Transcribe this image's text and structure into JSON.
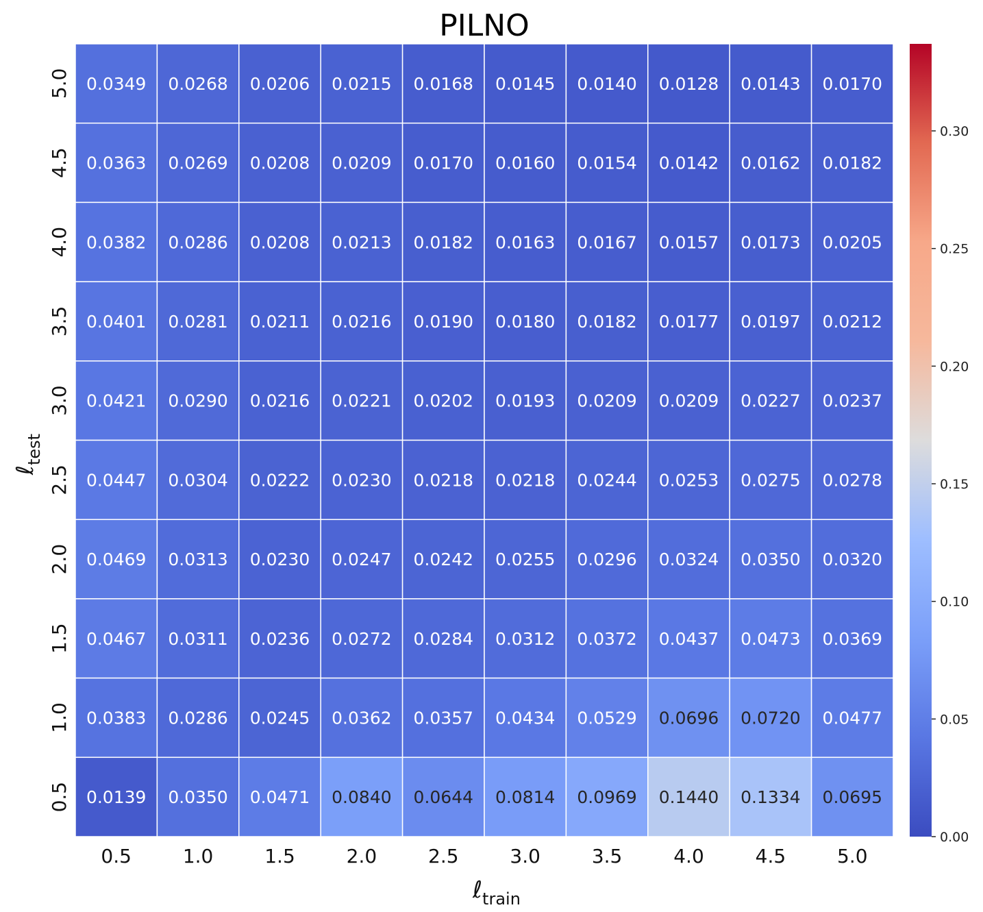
{
  "chart_data": {
    "type": "heatmap",
    "title": "PILNO",
    "xlabel": {
      "main": "ℓ",
      "sub": "train"
    },
    "ylabel": {
      "main": "ℓ",
      "sub": "test"
    },
    "x_categories": [
      "0.5",
      "1.0",
      "1.5",
      "2.0",
      "2.5",
      "3.0",
      "3.5",
      "4.0",
      "4.5",
      "5.0"
    ],
    "y_categories": [
      "5.0",
      "4.5",
      "4.0",
      "3.5",
      "3.0",
      "2.5",
      "2.0",
      "1.5",
      "1.0",
      "0.5"
    ],
    "values": [
      [
        0.0349,
        0.0268,
        0.0206,
        0.0215,
        0.0168,
        0.0145,
        0.014,
        0.0128,
        0.0143,
        0.017
      ],
      [
        0.0363,
        0.0269,
        0.0208,
        0.0209,
        0.017,
        0.016,
        0.0154,
        0.0142,
        0.0162,
        0.0182
      ],
      [
        0.0382,
        0.0286,
        0.0208,
        0.0213,
        0.0182,
        0.0163,
        0.0167,
        0.0157,
        0.0173,
        0.0205
      ],
      [
        0.0401,
        0.0281,
        0.0211,
        0.0216,
        0.019,
        0.018,
        0.0182,
        0.0177,
        0.0197,
        0.0212
      ],
      [
        0.0421,
        0.029,
        0.0216,
        0.0221,
        0.0202,
        0.0193,
        0.0209,
        0.0209,
        0.0227,
        0.0237
      ],
      [
        0.0447,
        0.0304,
        0.0222,
        0.023,
        0.0218,
        0.0218,
        0.0244,
        0.0253,
        0.0275,
        0.0278
      ],
      [
        0.0469,
        0.0313,
        0.023,
        0.0247,
        0.0242,
        0.0255,
        0.0296,
        0.0324,
        0.035,
        0.032
      ],
      [
        0.0467,
        0.0311,
        0.0236,
        0.0272,
        0.0284,
        0.0312,
        0.0372,
        0.0437,
        0.0473,
        0.0369
      ],
      [
        0.0383,
        0.0286,
        0.0245,
        0.0362,
        0.0357,
        0.0434,
        0.0529,
        0.0696,
        0.072,
        0.0477
      ],
      [
        0.0139,
        0.035,
        0.0471,
        0.084,
        0.0644,
        0.0814,
        0.0969,
        0.144,
        0.1334,
        0.0695
      ]
    ],
    "colormap": "coolwarm",
    "vmin": 0.0,
    "vmax": 0.337,
    "colorbar_ticks": [
      "0.00",
      "0.05",
      "0.10",
      "0.15",
      "0.20",
      "0.25",
      "0.30"
    ],
    "grid": true
  }
}
